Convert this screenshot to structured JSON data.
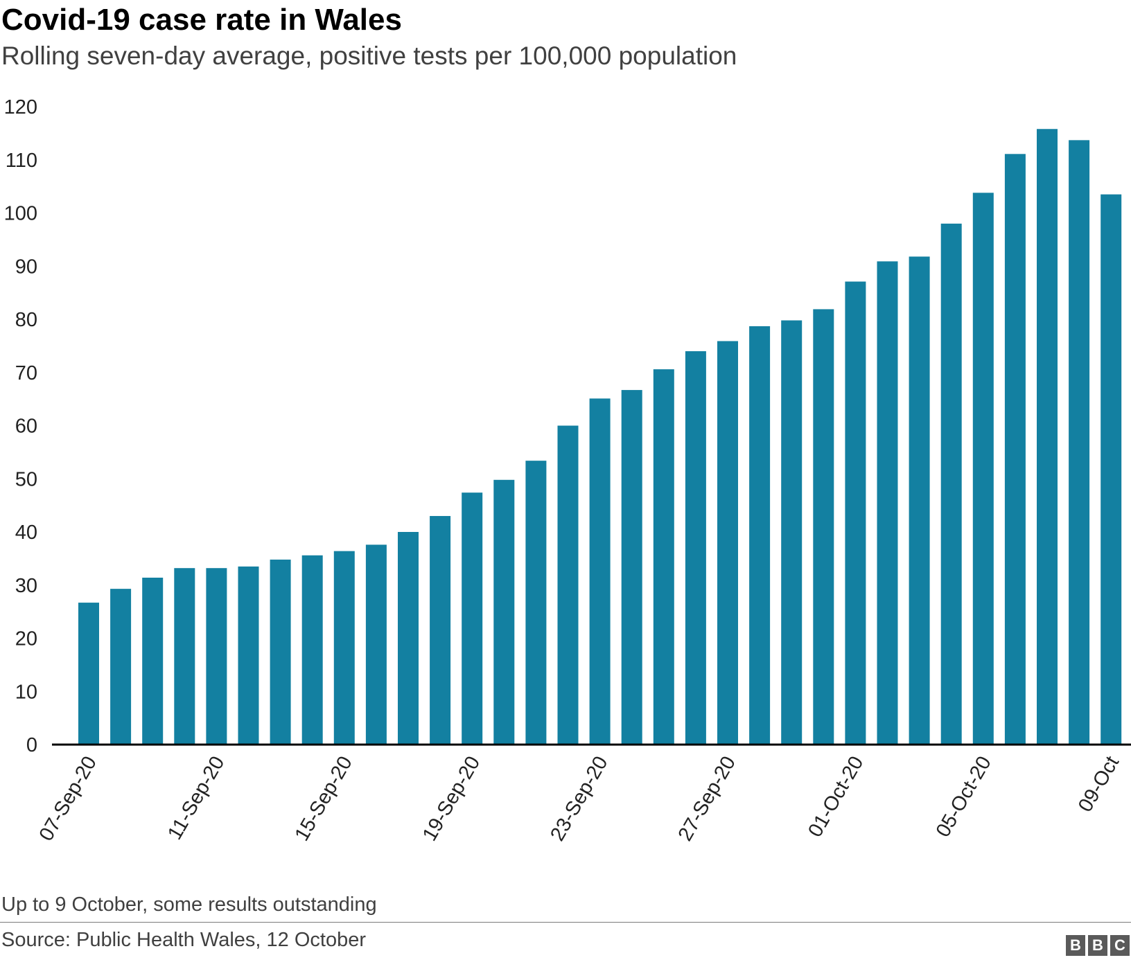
{
  "title": "Covid-19 case rate in Wales",
  "subtitle": "Rolling seven-day average, positive tests per 100,000 population",
  "footnote": "Up to 9 October, some results outstanding",
  "source": "Source: Public Health Wales, 12 October",
  "logo": [
    "B",
    "B",
    "C"
  ],
  "colors": {
    "bar": "#1380A1",
    "axis": "#000000",
    "gridline": "#cccccc",
    "text": "#222222"
  },
  "chart_data": {
    "type": "bar",
    "title": "Covid-19 case rate in Wales",
    "subtitle": "Rolling seven-day average, positive tests per 100,000 population",
    "xlabel": "",
    "ylabel": "",
    "ylim": [
      0,
      120
    ],
    "yticks": [
      0,
      10,
      20,
      30,
      40,
      50,
      60,
      70,
      80,
      90,
      100,
      110,
      120
    ],
    "categories": [
      "07-Sep-20",
      "08-Sep-20",
      "09-Sep-20",
      "10-Sep-20",
      "11-Sep-20",
      "12-Sep-20",
      "13-Sep-20",
      "14-Sep-20",
      "15-Sep-20",
      "16-Sep-20",
      "17-Sep-20",
      "18-Sep-20",
      "19-Sep-20",
      "20-Sep-20",
      "21-Sep-20",
      "22-Sep-20",
      "23-Sep-20",
      "24-Sep-20",
      "25-Sep-20",
      "26-Sep-20",
      "27-Sep-20",
      "28-Sep-20",
      "29-Sep-20",
      "30-Sep-20",
      "01-Oct-20",
      "02-Oct-20",
      "03-Oct-20",
      "04-Oct-20",
      "05-Oct-20",
      "06-Oct-20",
      "07-Oct-20",
      "08-Oct-20",
      "09-Oct"
    ],
    "values": [
      26.7,
      29.3,
      31.4,
      33.2,
      33.2,
      33.5,
      34.8,
      35.6,
      36.4,
      37.6,
      40.0,
      43.0,
      47.4,
      49.8,
      53.4,
      60.0,
      65.1,
      66.7,
      70.6,
      74.0,
      75.9,
      78.7,
      79.8,
      81.9,
      87.1,
      90.9,
      91.8,
      98.0,
      103.8,
      111.1,
      115.8,
      113.7,
      103.5
    ],
    "tick_labels": [
      "07-Sep-20",
      "11-Sep-20",
      "15-Sep-20",
      "19-Sep-20",
      "23-Sep-20",
      "27-Sep-20",
      "01-Oct-20",
      "05-Oct-20",
      "09-Oct"
    ],
    "grid": false,
    "legend": "none"
  }
}
